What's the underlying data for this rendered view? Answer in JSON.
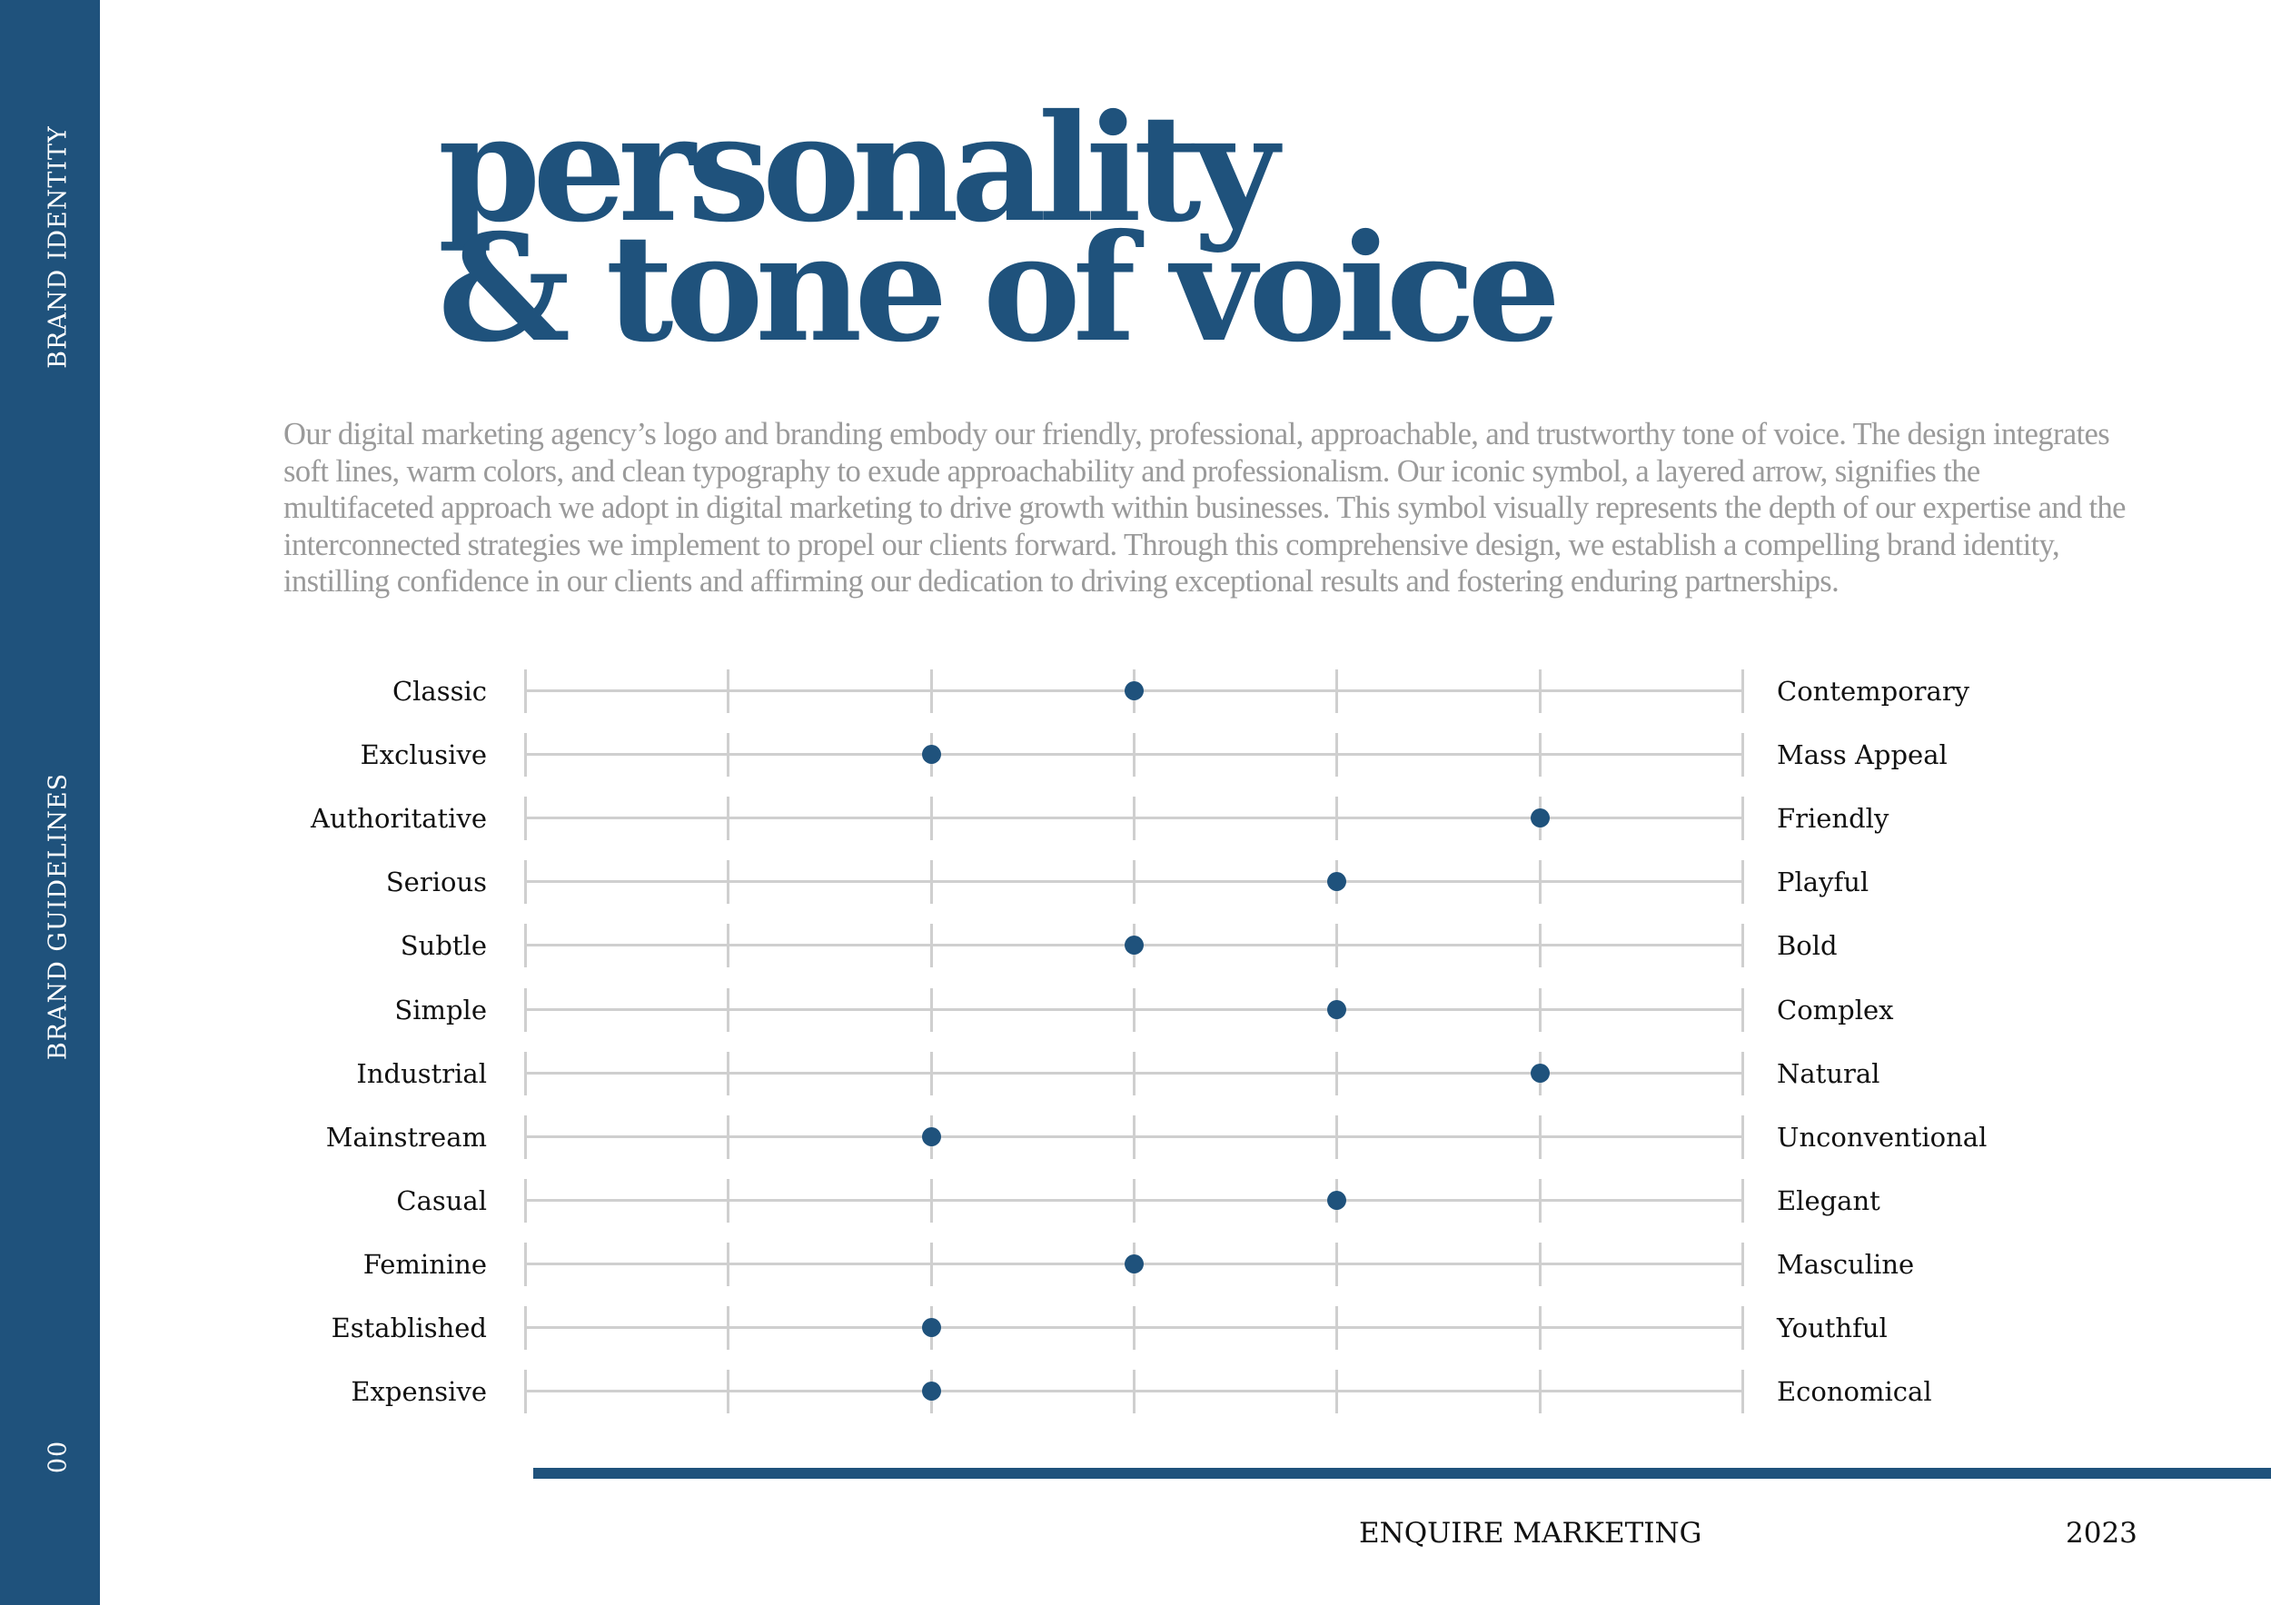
{
  "sidebar": {
    "section_top": "BRAND IDENTITY",
    "section_middle": "BRAND GUIDELINES",
    "page_number": "00"
  },
  "header": {
    "title_line1": "personality",
    "title_line2": "& tone of voice"
  },
  "intro": "Our digital marketing agency’s logo and branding embody our friendly, professional, approachable, and trustworthy tone of voice. The design integrates soft lines, warm colors, and clean typography to exude approachability and professionalism. Our iconic symbol, a layered arrow, signifies the multifaceted approach we adopt in digital marketing to drive growth within businesses. This symbol visually represents the depth of our expertise and the interconnected strategies we implement to propel our clients forward. Through this comprehensive design, we establish a compelling brand identity, instilling confidence in our clients and affirming our dedication to driving exceptional results and fostering enduring partnerships.",
  "colors": {
    "brand_blue": "#1f527c",
    "track_grey": "#cfcfcf",
    "intro_grey": "#9a9a9a"
  },
  "scale": {
    "steps": 7,
    "traits": [
      {
        "left": "Classic",
        "right": "Contemporary",
        "value": 3
      },
      {
        "left": "Exclusive",
        "right": "Mass Appeal",
        "value": 2
      },
      {
        "left": "Authoritative",
        "right": "Friendly",
        "value": 5
      },
      {
        "left": "Serious",
        "right": "Playful",
        "value": 4
      },
      {
        "left": "Subtle",
        "right": "Bold",
        "value": 3
      },
      {
        "left": "Simple",
        "right": "Complex",
        "value": 4
      },
      {
        "left": "Industrial",
        "right": "Natural",
        "value": 5
      },
      {
        "left": "Mainstream",
        "right": "Unconventional",
        "value": 2
      },
      {
        "left": "Casual",
        "right": "Elegant",
        "value": 4
      },
      {
        "left": "Feminine",
        "right": "Masculine",
        "value": 3
      },
      {
        "left": "Established",
        "right": "Youthful",
        "value": 2
      },
      {
        "left": "Expensive",
        "right": "Economical",
        "value": 2
      }
    ]
  },
  "footer": {
    "company": "ENQUIRE MARKETING",
    "year": "2023"
  }
}
